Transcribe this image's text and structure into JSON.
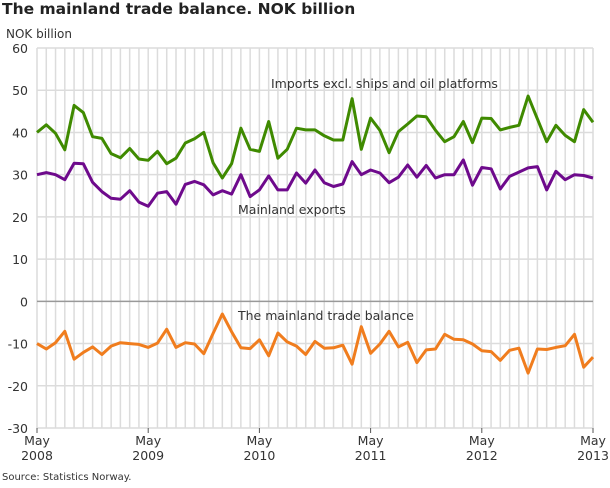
{
  "chart_data": {
    "type": "line",
    "title": "The mainland trade balance. NOK billion",
    "ylabel": "NOK billion",
    "xlabel": "",
    "source": "Source: Statistics Norway.",
    "x_start": "2008-05",
    "x_end": "2013-05",
    "x_ticks": [
      {
        "month": "May",
        "year": "2008"
      },
      {
        "month": "May",
        "year": "2009"
      },
      {
        "month": "May",
        "year": "2010"
      },
      {
        "month": "May",
        "year": "2011"
      },
      {
        "month": "May",
        "year": "2012"
      },
      {
        "month": "May",
        "year": "2013"
      }
    ],
    "ylim": [
      -30,
      60
    ],
    "y_ticks": [
      60,
      50,
      40,
      30,
      20,
      10,
      0,
      -10,
      -20,
      -30
    ],
    "grid": true,
    "series": [
      {
        "name": "Imports excl. ships and oil platforms",
        "color": "#3f8a00",
        "values": [
          40.0,
          41.8,
          39.8,
          35.9,
          46.4,
          44.7,
          39.0,
          38.6,
          35.0,
          34.0,
          36.2,
          33.7,
          33.4,
          35.5,
          32.6,
          33.9,
          37.5,
          38.5,
          40.0,
          32.8,
          29.2,
          32.6,
          41.0,
          36.0,
          35.5,
          42.6,
          33.9,
          36.0,
          41.0,
          40.6,
          40.6,
          39.2,
          38.2,
          38.2,
          48.0,
          36.0,
          43.4,
          40.5,
          35.2,
          40.2,
          42.0,
          43.9,
          43.7,
          40.5,
          37.8,
          39.0,
          42.6,
          37.6,
          43.4,
          43.3,
          40.6,
          41.2,
          41.7,
          48.6,
          43.2,
          37.8,
          41.7,
          39.3,
          37.8,
          45.4,
          42.4
        ]
      },
      {
        "name": "Mainland exports",
        "color": "#6e0a8c",
        "values": [
          30.0,
          30.5,
          30.0,
          28.8,
          32.7,
          32.6,
          28.2,
          26.0,
          24.4,
          24.2,
          26.2,
          23.5,
          22.5,
          25.6,
          26.0,
          23.0,
          27.7,
          28.4,
          27.6,
          25.2,
          26.2,
          25.4,
          30.0,
          24.8,
          26.4,
          29.7,
          26.4,
          26.4,
          30.4,
          28.0,
          31.1,
          28.1,
          27.2,
          27.8,
          33.1,
          30.0,
          31.1,
          30.4,
          28.1,
          29.4,
          32.3,
          29.4,
          32.2,
          29.2,
          30.0,
          30.0,
          33.5,
          27.5,
          31.7,
          31.4,
          26.6,
          29.6,
          30.6,
          31.6,
          31.9,
          26.4,
          30.8,
          28.8,
          30.0,
          29.8,
          29.2
        ]
      },
      {
        "name": "The mainland trade balance",
        "color": "#f07d1e",
        "values": [
          -10.0,
          -11.3,
          -9.8,
          -7.1,
          -13.7,
          -12.1,
          -10.8,
          -12.6,
          -10.6,
          -9.8,
          -10.0,
          -10.2,
          -10.9,
          -9.9,
          -6.6,
          -10.9,
          -9.8,
          -10.1,
          -12.4,
          -7.6,
          -3.0,
          -7.2,
          -11.0,
          -11.2,
          -9.1,
          -12.9,
          -7.5,
          -9.6,
          -10.6,
          -12.6,
          -9.5,
          -11.1,
          -11.0,
          -10.4,
          -14.9,
          -6.0,
          -12.3,
          -10.1,
          -7.1,
          -10.8,
          -9.7,
          -14.5,
          -11.5,
          -11.3,
          -7.8,
          -9.0,
          -9.1,
          -10.1,
          -11.7,
          -11.9,
          -14.0,
          -11.6,
          -11.1,
          -17.0,
          -11.3,
          -11.4,
          -10.9,
          -10.5,
          -7.8,
          -15.6,
          -13.2
        ]
      }
    ]
  }
}
